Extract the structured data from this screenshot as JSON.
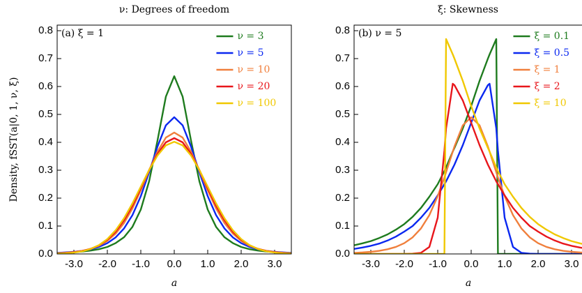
{
  "chart_data": [
    {
      "type": "line",
      "title": "ν: Degrees of freedom",
      "annotation": "(a) ξ = 1",
      "xlabel": "a",
      "ylabel": "Density, fSST(a|0, 1, ν, ξ)",
      "legend": "upper right",
      "xlim": [
        -3.5,
        3.5
      ],
      "ylim": [
        0,
        0.82
      ],
      "xticks": [
        {
          "value": -3,
          "label": "-3.0"
        },
        {
          "value": -2,
          "label": "-2.0"
        },
        {
          "value": -1,
          "label": "-1.0"
        },
        {
          "value": 0,
          "label": "0.0"
        },
        {
          "value": 1,
          "label": "1.0"
        },
        {
          "value": 2,
          "label": "2.0"
        },
        {
          "value": 3,
          "label": "3.0"
        }
      ],
      "yticks": [
        {
          "value": 0,
          "label": "0.0"
        },
        {
          "value": 0.1,
          "label": "0.1"
        },
        {
          "value": 0.2,
          "label": "0.2"
        },
        {
          "value": 0.3,
          "label": "0.3"
        },
        {
          "value": 0.4,
          "label": "0.4"
        },
        {
          "value": 0.5,
          "label": "0.5"
        },
        {
          "value": 0.6,
          "label": "0.6"
        },
        {
          "value": 0.7,
          "label": "0.7"
        },
        {
          "value": 0.8,
          "label": "0.8"
        }
      ],
      "x": [
        -3.5,
        -3.25,
        -3,
        -2.75,
        -2.5,
        -2.25,
        -2,
        -1.75,
        -1.5,
        -1.25,
        -1,
        -0.75,
        -0.5,
        -0.25,
        0,
        0.25,
        0.5,
        0.75,
        1,
        1.25,
        1.5,
        1.75,
        2,
        2.25,
        2.5,
        2.75,
        3,
        3.25,
        3.5
      ],
      "series": [
        {
          "name": "ν = 3",
          "color": "#1e7b1e",
          "values": [
            0.0036,
            0.0048,
            0.0064,
            0.0087,
            0.012,
            0.017,
            0.025,
            0.039,
            0.06,
            0.097,
            0.159,
            0.261,
            0.407,
            0.564,
            0.637,
            0.564,
            0.407,
            0.261,
            0.159,
            0.097,
            0.06,
            0.039,
            0.025,
            0.017,
            0.012,
            0.0087,
            0.0064,
            0.0048,
            0.0036
          ]
        },
        {
          "name": "ν = 5",
          "color": "#0a28f0",
          "values": [
            0.0037,
            0.0053,
            0.0077,
            0.0112,
            0.0167,
            0.0252,
            0.0386,
            0.0594,
            0.0915,
            0.139,
            0.207,
            0.293,
            0.385,
            0.461,
            0.49,
            0.461,
            0.385,
            0.293,
            0.207,
            0.139,
            0.0915,
            0.0594,
            0.0386,
            0.0252,
            0.0167,
            0.0112,
            0.0077,
            0.0053,
            0.0037
          ]
        },
        {
          "name": "ν = 10",
          "color": "#f07f3c",
          "values": [
            0.0026,
            0.0042,
            0.0069,
            0.0112,
            0.0182,
            0.0293,
            0.0468,
            0.0732,
            0.111,
            0.163,
            0.228,
            0.299,
            0.367,
            0.417,
            0.435,
            0.417,
            0.367,
            0.299,
            0.228,
            0.163,
            0.111,
            0.0732,
            0.0468,
            0.0293,
            0.0182,
            0.0112,
            0.0069,
            0.0042,
            0.0026
          ]
        },
        {
          "name": "ν = 20",
          "color": "#e8161b",
          "values": [
            0.0018,
            0.0033,
            0.0059,
            0.0104,
            0.0182,
            0.0308,
            0.0505,
            0.0798,
            0.121,
            0.173,
            0.235,
            0.301,
            0.359,
            0.4,
            0.415,
            0.4,
            0.359,
            0.301,
            0.235,
            0.173,
            0.121,
            0.0798,
            0.0505,
            0.0308,
            0.0182,
            0.0104,
            0.0059,
            0.0033,
            0.0018
          ]
        },
        {
          "name": "ν = 100",
          "color": "#f0c800",
          "values": [
            0.001,
            0.0023,
            0.0048,
            0.0094,
            0.0177,
            0.0316,
            0.0533,
            0.085,
            0.128,
            0.181,
            0.241,
            0.301,
            0.353,
            0.389,
            0.402,
            0.389,
            0.353,
            0.301,
            0.241,
            0.181,
            0.128,
            0.085,
            0.0533,
            0.0316,
            0.0177,
            0.0094,
            0.0048,
            0.0023,
            0.001
          ]
        }
      ]
    },
    {
      "type": "line",
      "title": "ξ: Skewness",
      "annotation": "(b) ν = 5",
      "xlabel": "a",
      "legend": "upper right",
      "xlim": [
        -3.5,
        3.5
      ],
      "ylim": [
        0,
        0.82
      ],
      "xticks": [
        {
          "value": -3,
          "label": "-3.0"
        },
        {
          "value": -2,
          "label": "-2.0"
        },
        {
          "value": -1,
          "label": "-1.0"
        },
        {
          "value": 0,
          "label": "0.0"
        },
        {
          "value": 1,
          "label": "1.0"
        },
        {
          "value": 2,
          "label": "2.0"
        },
        {
          "value": 3,
          "label": "3.0"
        }
      ],
      "yticks": [
        {
          "value": 0,
          "label": "0.0"
        },
        {
          "value": 0.1,
          "label": "0.1"
        },
        {
          "value": 0.2,
          "label": "0.2"
        },
        {
          "value": 0.3,
          "label": "0.3"
        },
        {
          "value": 0.4,
          "label": "0.4"
        },
        {
          "value": 0.5,
          "label": "0.5"
        },
        {
          "value": 0.6,
          "label": "0.6"
        },
        {
          "value": 0.7,
          "label": "0.7"
        },
        {
          "value": 0.8,
          "label": "0.8"
        }
      ],
      "x": [
        -3.5,
        -3.25,
        -3,
        -2.75,
        -2.5,
        -2.25,
        -2,
        -1.75,
        -1.5,
        -1.25,
        -1,
        -0.8,
        -0.75,
        -0.55,
        -0.5,
        -0.25,
        0,
        0.25,
        0.5,
        0.55,
        0.75,
        0.8,
        1,
        1.25,
        1.5,
        1.75,
        2,
        2.25,
        2.5,
        2.75,
        3,
        3.25,
        3.5
      ],
      "series": [
        {
          "name": "ξ = 0.1",
          "color": "#1e7b1e",
          "values": [
            0.031,
            0.038,
            0.046,
            0.057,
            0.07,
            0.087,
            0.107,
            0.133,
            0.165,
            0.205,
            0.25,
            0.297,
            0.31,
            0.367,
            0.38,
            0.45,
            0.53,
            0.62,
            0.7,
            0.715,
            0.77,
            0,
            0,
            0,
            0,
            0,
            0,
            0,
            0,
            0,
            0,
            0,
            0
          ]
        },
        {
          "name": "ξ = 0.5",
          "color": "#0a28f0",
          "values": [
            0.018,
            0.023,
            0.029,
            0.037,
            0.048,
            0.062,
            0.08,
            0.1,
            0.13,
            0.165,
            0.21,
            0.25,
            0.26,
            0.308,
            0.32,
            0.39,
            0.47,
            0.55,
            0.605,
            0.61,
            0.45,
            0.37,
            0.13,
            0.025,
            0.004,
            0.001,
            0,
            0,
            0,
            0,
            0,
            0,
            0
          ]
        },
        {
          "name": "ξ = 1",
          "color": "#f07f3c",
          "values": [
            0.0037,
            0.0053,
            0.0077,
            0.0112,
            0.0167,
            0.0252,
            0.0386,
            0.0594,
            0.0915,
            0.139,
            0.207,
            0.274,
            0.293,
            0.367,
            0.385,
            0.461,
            0.49,
            0.461,
            0.385,
            0.367,
            0.293,
            0.274,
            0.207,
            0.139,
            0.0915,
            0.0594,
            0.0386,
            0.0252,
            0.0167,
            0.0112,
            0.0077,
            0.0053,
            0.0037
          ]
        },
        {
          "name": "ξ = 2",
          "color": "#e8161b",
          "values": [
            0,
            0,
            0,
            0,
            0,
            0,
            0,
            0.001,
            0.004,
            0.025,
            0.13,
            0.37,
            0.45,
            0.61,
            0.605,
            0.55,
            0.47,
            0.39,
            0.32,
            0.308,
            0.26,
            0.25,
            0.21,
            0.165,
            0.13,
            0.1,
            0.08,
            0.062,
            0.048,
            0.037,
            0.029,
            0.023,
            0.018
          ]
        },
        {
          "name": "ξ = 10",
          "color": "#f0c800",
          "values": [
            0,
            0,
            0,
            0,
            0,
            0,
            0,
            0,
            0,
            0,
            0,
            0,
            0.77,
            0.715,
            0.7,
            0.62,
            0.53,
            0.45,
            0.38,
            0.367,
            0.31,
            0.297,
            0.25,
            0.205,
            0.165,
            0.133,
            0.107,
            0.087,
            0.07,
            0.057,
            0.046,
            0.038,
            0.031
          ]
        }
      ]
    }
  ]
}
